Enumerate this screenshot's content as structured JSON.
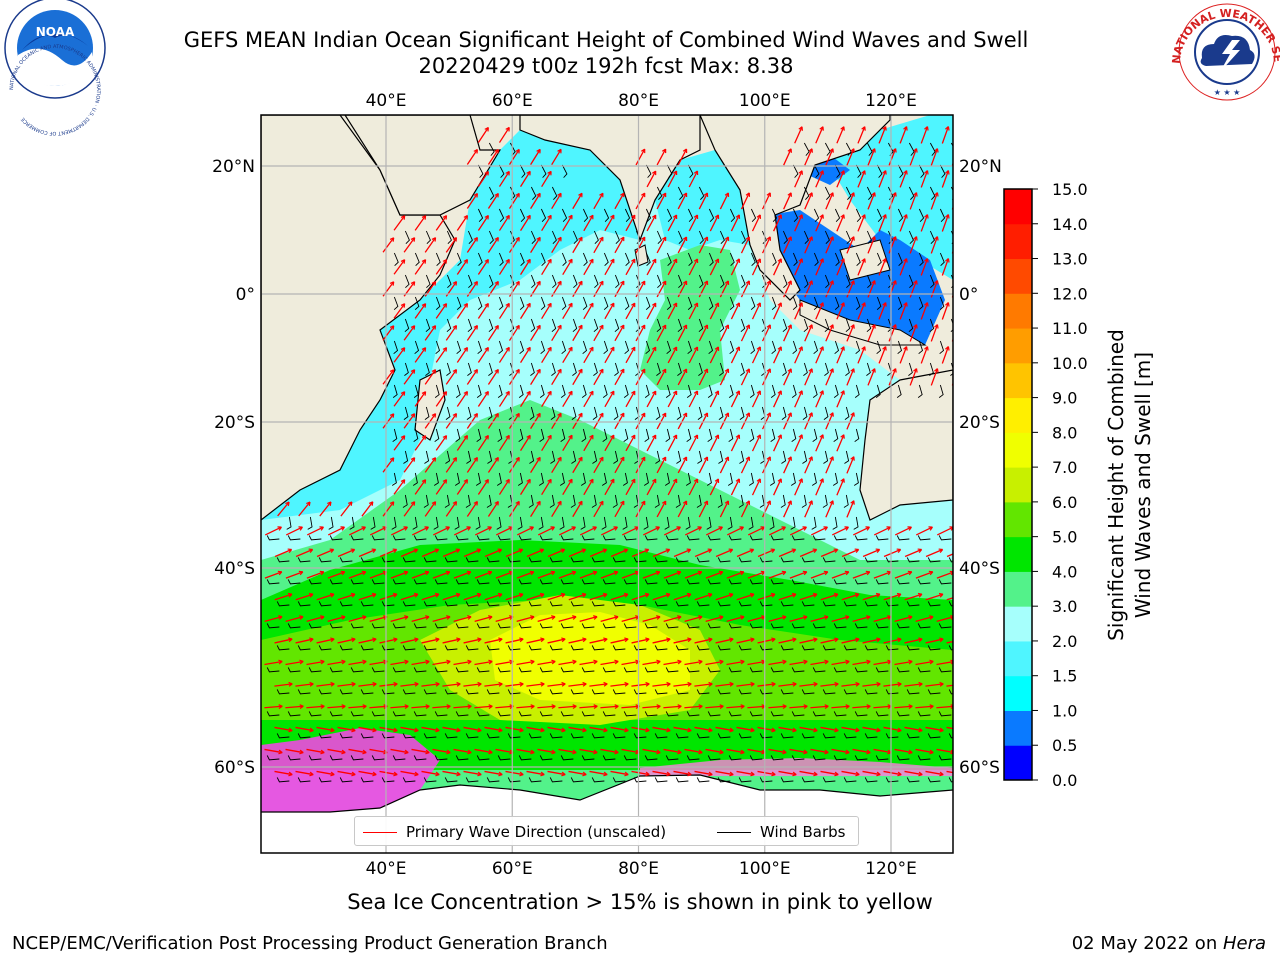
{
  "title": {
    "line1": "GEFS MEAN Indian Ocean Significant Height of Combined Wind Waves and Swell",
    "line2": "20220429 t00z 192h fcst   Max: 8.38"
  },
  "logos": {
    "noaa": {
      "text": "NOAA",
      "ring_text": "NATIONAL OCEANIC AND ATMOSPHERIC ADMINISTRATION · U.S. DEPARTMENT OF COMMERCE"
    },
    "nws": {
      "ring_text": "NATIONAL WEATHER SERVICE"
    }
  },
  "map": {
    "lon_labels": [
      "40°E",
      "60°E",
      "80°E",
      "100°E",
      "120°E"
    ],
    "lon_values": [
      40,
      60,
      80,
      100,
      120
    ],
    "lat_labels": [
      "20°N",
      "0°",
      "20°S",
      "40°S",
      "60°S"
    ],
    "lat_values": [
      20,
      0,
      -20,
      -40,
      -60
    ],
    "land_color": "#efecdc",
    "grid": true
  },
  "colorbar": {
    "label_line1": "Significant Height of Combined",
    "label_line2": "Wind Waves and Swell [m]",
    "ticks": [
      "0.0",
      "0.5",
      "1.0",
      "1.5",
      "2.0",
      "3.0",
      "4.0",
      "5.0",
      "6.0",
      "7.0",
      "8.0",
      "9.0",
      "10.0",
      "11.0",
      "12.0",
      "13.0",
      "14.0",
      "15.0"
    ],
    "colors": [
      "#0000ff",
      "#0a7aff",
      "#00ffff",
      "#4ff5ff",
      "#a6fffc",
      "#53f28a",
      "#00e600",
      "#62e600",
      "#c8f000",
      "#f0ff00",
      "#ffef00",
      "#ffc400",
      "#ff9d00",
      "#ff7a00",
      "#ff4a00",
      "#ff1e00",
      "#ff0000"
    ]
  },
  "legend": {
    "wave_label": "Primary Wave Direction (unscaled)",
    "wind_label": "Wind Barbs"
  },
  "footnote": "Sea Ice Concentration > 15% is shown in pink to yellow",
  "credit": {
    "left": "NCEP/EMC/Verification Post Processing Product Generation Branch",
    "right_date": "02 May 2022 on ",
    "right_host": "Hera"
  }
}
